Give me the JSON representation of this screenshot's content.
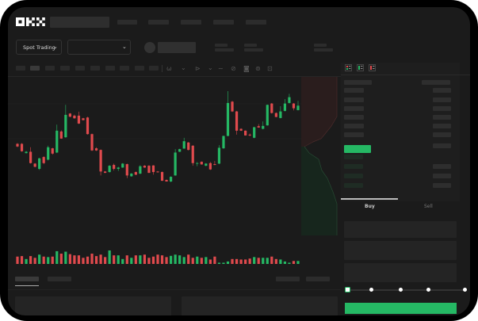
{
  "brand": {
    "logo_text": "OKX"
  },
  "header": {
    "market_selector_label": "Spot Trading"
  },
  "toolbar": {
    "icons": [
      "indicator-icon",
      "chevron-down-icon",
      "candle-type-icon",
      "chevron-down-icon",
      "line-icon",
      "ruler-icon",
      "camera-icon",
      "settings-icon",
      "fullscreen-icon"
    ]
  },
  "trade_panel": {
    "tabs": [
      {
        "label": "Buy",
        "active": true
      },
      {
        "label": "Sell",
        "active": false
      }
    ],
    "slider_value_percent": 0,
    "slider_marks": [
      0,
      25,
      50,
      75,
      100
    ]
  },
  "colors": {
    "up": "#25b864",
    "down": "#e04a4d",
    "background": "#1b1b1b",
    "accent": "#25b864"
  },
  "chart_data": {
    "type": "candlestick",
    "ohlc": [
      [
        46.25,
        43.75,
        47,
        43
      ],
      [
        46.25,
        39.25,
        47,
        38.75
      ],
      [
        37.5,
        38.75,
        39.5,
        37
      ],
      [
        38.75,
        28,
        43,
        27.5
      ],
      [
        27.5,
        24.5,
        28,
        24
      ],
      [
        22.5,
        32.5,
        33,
        21.5
      ],
      [
        33.75,
        28,
        34.5,
        27
      ],
      [
        31.25,
        43,
        44.5,
        30.5
      ],
      [
        42,
        37,
        42.5,
        36
      ],
      [
        38,
        58.75,
        64.5,
        37.5
      ],
      [
        58,
        51.25,
        59,
        51
      ],
      [
        52.5,
        73.75,
        83.25,
        52
      ],
      [
        75,
        72,
        75.5,
        71.5
      ],
      [
        73,
        70.5,
        74,
        70
      ],
      [
        73,
        65.5,
        76.75,
        65
      ],
      [
        70.5,
        68.75,
        71,
        68.5
      ],
      [
        71.25,
        55.5,
        72,
        55
      ],
      [
        55.5,
        40,
        56,
        39.5
      ],
      [
        42,
        40,
        43,
        39.5
      ],
      [
        40.5,
        20,
        41,
        16.25
      ],
      [
        20,
        18.75,
        20.5,
        18.5
      ],
      [
        19.5,
        25.5,
        26,
        19
      ],
      [
        26.25,
        22.5,
        27.5,
        21
      ],
      [
        22.5,
        23.75,
        24.5,
        20.5
      ],
      [
        23.75,
        27.5,
        28,
        23.5
      ],
      [
        27,
        16.25,
        27.5,
        13.75
      ],
      [
        15.5,
        18,
        18.5,
        15
      ],
      [
        19.5,
        17,
        20,
        16.5
      ],
      [
        18,
        25,
        26,
        17.5
      ],
      [
        25.5,
        23.75,
        26,
        23.5
      ],
      [
        25.5,
        18.75,
        26,
        18.5
      ],
      [
        25.75,
        19.5,
        26,
        17
      ],
      [
        20,
        19.25,
        20.5,
        19
      ],
      [
        19.5,
        11.25,
        20,
        11
      ],
      [
        12,
        10.5,
        12.5,
        10.5
      ],
      [
        10.5,
        15,
        15.5,
        10
      ],
      [
        16.25,
        38,
        41.25,
        16
      ],
      [
        38.75,
        41.25,
        41.5,
        38.5
      ],
      [
        41.75,
        48.75,
        52,
        41.5
      ],
      [
        47.5,
        40.5,
        48,
        40
      ],
      [
        44.5,
        28,
        45,
        25.5
      ],
      [
        27.5,
        28,
        29,
        25
      ],
      [
        29.25,
        26.75,
        29.5,
        26.5
      ],
      [
        25.5,
        27.5,
        28,
        25
      ],
      [
        28,
        22,
        29,
        21.5
      ],
      [
        27,
        26.25,
        30,
        26
      ],
      [
        27.5,
        42.5,
        45,
        27
      ],
      [
        42,
        53.75,
        54,
        41.5
      ],
      [
        53.75,
        85,
        96.25,
        53.5
      ],
      [
        86.25,
        77,
        87,
        76.5
      ],
      [
        77,
        58.75,
        77.5,
        55
      ],
      [
        60.5,
        58.75,
        61,
        58.5
      ],
      [
        58.75,
        54.25,
        59,
        54
      ],
      [
        55,
        54.25,
        56,
        53.5
      ],
      [
        52,
        62,
        62.5,
        51.5
      ],
      [
        63,
        61.75,
        65,
        61.5
      ],
      [
        60.5,
        63.25,
        67.5,
        60
      ],
      [
        63.75,
        83.25,
        83.5,
        63.5
      ],
      [
        84.5,
        75.5,
        85,
        75
      ],
      [
        75.5,
        71.75,
        76,
        71.5
      ],
      [
        70.75,
        77,
        82,
        70.5
      ],
      [
        77.5,
        84.5,
        88.75,
        77
      ],
      [
        85,
        90.5,
        93.75,
        84.5
      ],
      [
        84.5,
        80,
        85,
        78
      ],
      [
        78.25,
        82.5,
        87,
        78
      ]
    ],
    "volume": [
      30,
      32,
      20,
      32,
      25,
      38,
      30,
      28,
      30,
      52,
      42,
      50,
      40,
      35,
      35,
      25,
      30,
      42,
      32,
      38,
      28,
      55,
      35,
      35,
      20,
      35,
      25,
      35,
      35,
      38,
      25,
      30,
      38,
      35,
      28,
      33,
      38,
      35,
      28,
      38,
      25,
      30,
      25,
      28,
      18,
      30,
      5,
      5,
      10,
      20,
      20,
      18,
      18,
      22,
      28,
      25,
      25,
      25,
      30,
      20,
      18,
      10,
      5,
      12,
      12
    ],
    "ylim": [
      0,
      100
    ],
    "grid": true
  }
}
